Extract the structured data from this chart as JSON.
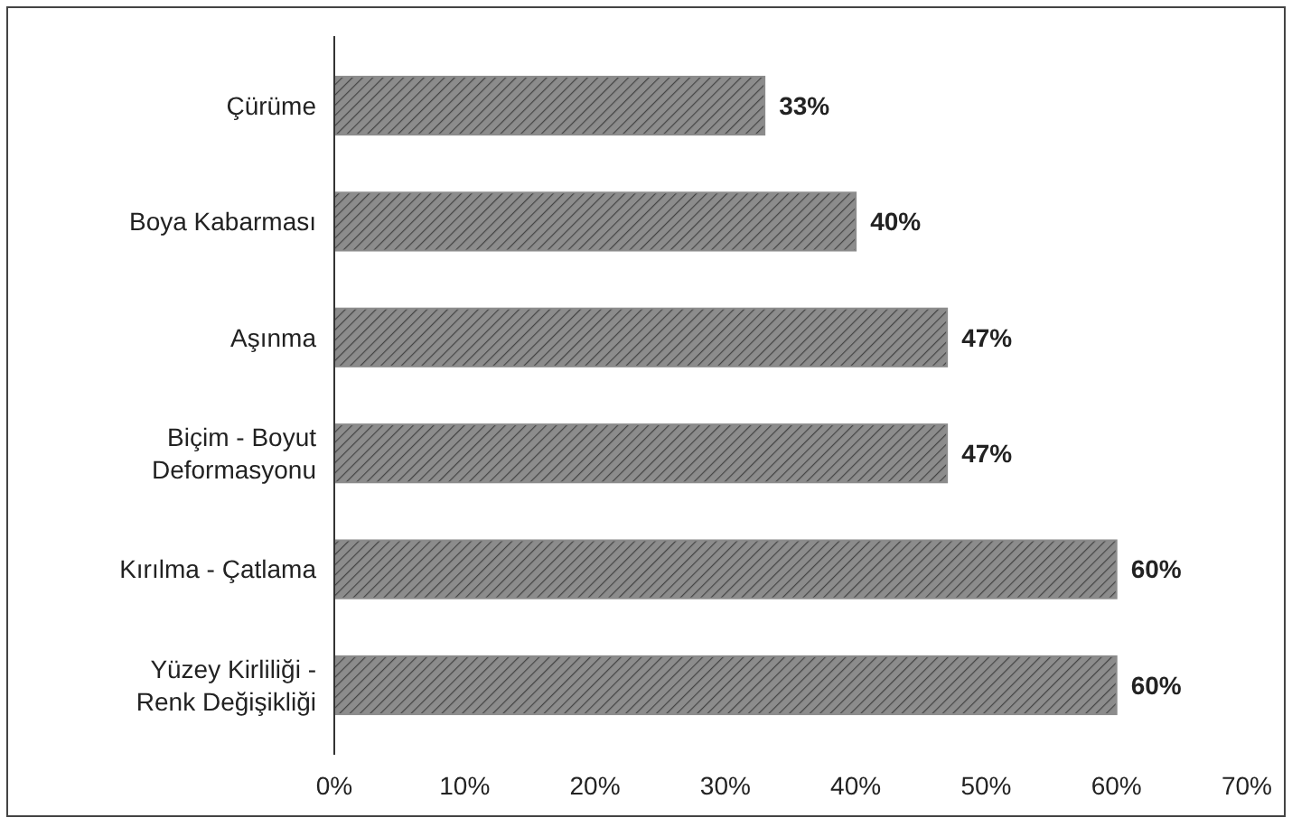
{
  "chart_data": {
    "type": "bar",
    "orientation": "horizontal",
    "categories": [
      "Çürüme",
      "Boya Kabarması",
      "Aşınma",
      "Biçim - Boyut Deformasyonu",
      "Kırılma - Çatlama",
      "Yüzey Kirliliği - Renk Değişikliği"
    ],
    "values": [
      33,
      40,
      47,
      47,
      60,
      60
    ],
    "value_labels": [
      "33%",
      "40%",
      "47%",
      "47%",
      "60%",
      "60%"
    ],
    "color": "#8c8c8c",
    "xlim": [
      0,
      70
    ],
    "xticks": [
      {
        "value": 0,
        "label": "0%"
      },
      {
        "value": 10,
        "label": "10%"
      },
      {
        "value": 20,
        "label": "20%"
      },
      {
        "value": 30,
        "label": "30%"
      },
      {
        "value": 40,
        "label": "40%"
      },
      {
        "value": 50,
        "label": "50%"
      },
      {
        "value": 60,
        "label": "60%"
      },
      {
        "value": 70,
        "label": "70%"
      }
    ],
    "grid": false
  }
}
